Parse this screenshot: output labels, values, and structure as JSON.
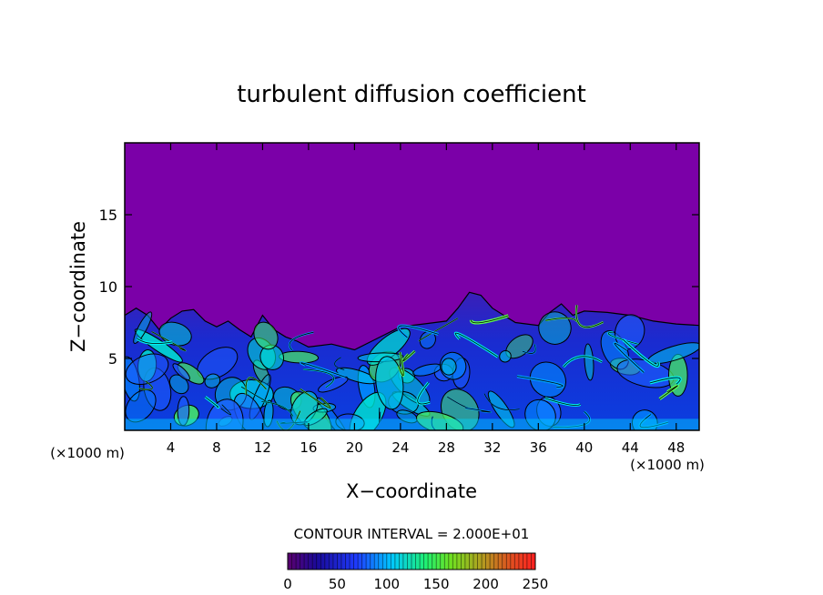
{
  "chart_data": {
    "type": "heatmap",
    "title": "turbulent diffusion coefficient",
    "xlabel": "X−coordinate",
    "ylabel": "Z−coordinate",
    "x_unit_label": "(×1000 m)",
    "y_unit_label": "(×1000 m)",
    "xlim": [
      0,
      50
    ],
    "ylim": [
      0,
      20
    ],
    "x_ticks": [
      4,
      8,
      12,
      16,
      20,
      24,
      28,
      32,
      36,
      40,
      44,
      48
    ],
    "x_tick_labels": [
      "4",
      "8",
      "12",
      "16",
      "20",
      "24",
      "28",
      "32",
      "36",
      "40",
      "44",
      "48"
    ],
    "y_ticks": [
      5,
      10,
      15
    ],
    "y_tick_labels": [
      "5",
      "10",
      "15"
    ],
    "contour_interval_text": "CONTOUR INTERVAL = 2.000E+01",
    "colorbar": {
      "min": 0,
      "max": 250,
      "ticks": [
        0,
        50,
        100,
        150,
        200,
        250
      ],
      "tick_labels": [
        "0",
        "50",
        "100",
        "150",
        "200",
        "250"
      ]
    },
    "turbulent_layer_top_km": [
      [
        0,
        8.0
      ],
      [
        1,
        8.5
      ],
      [
        2,
        8.0
      ],
      [
        3,
        7.0
      ],
      [
        4,
        7.8
      ],
      [
        5,
        8.3
      ],
      [
        6,
        8.4
      ],
      [
        7,
        7.6
      ],
      [
        8,
        7.2
      ],
      [
        9,
        7.6
      ],
      [
        10,
        7.0
      ],
      [
        11,
        6.5
      ],
      [
        12,
        8.0
      ],
      [
        13,
        7.0
      ],
      [
        14,
        6.5
      ],
      [
        15,
        6.2
      ],
      [
        16,
        5.8
      ],
      [
        18,
        6.0
      ],
      [
        20,
        5.6
      ],
      [
        22,
        6.4
      ],
      [
        24,
        7.2
      ],
      [
        26,
        7.4
      ],
      [
        28,
        7.6
      ],
      [
        29,
        8.5
      ],
      [
        30,
        9.6
      ],
      [
        31,
        9.4
      ],
      [
        32,
        8.5
      ],
      [
        34,
        7.5
      ],
      [
        36,
        7.3
      ],
      [
        37,
        8.2
      ],
      [
        38,
        8.8
      ],
      [
        39,
        8.0
      ],
      [
        40,
        8.3
      ],
      [
        42,
        8.2
      ],
      [
        44,
        8.0
      ],
      [
        46,
        7.6
      ],
      [
        48,
        7.4
      ],
      [
        50,
        7.3
      ]
    ],
    "colors": {
      "background_field": "#7b00a8",
      "low": "#1a1aa0",
      "mid": "#0077ff",
      "high": "#00e0e0",
      "peak": "#66ff44"
    }
  }
}
